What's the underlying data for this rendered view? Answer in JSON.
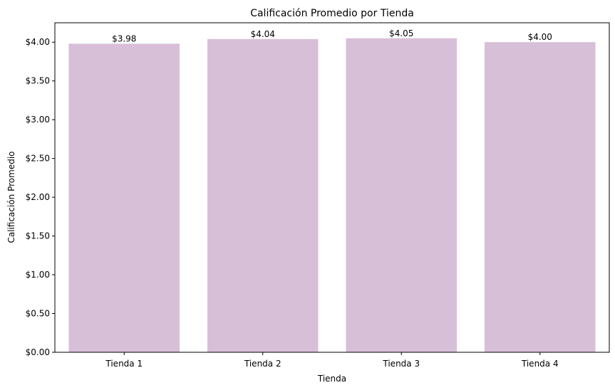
{
  "chart_data": {
    "type": "bar",
    "title": "Calificación Promedio por Tienda",
    "xlabel": "Tienda",
    "ylabel": "Calificación Promedio",
    "categories": [
      "Tienda 1",
      "Tienda 2",
      "Tienda 3",
      "Tienda 4"
    ],
    "values": [
      3.98,
      4.04,
      4.05,
      4.0
    ],
    "data_labels": [
      "$3.98",
      "$4.04",
      "$4.05",
      "$4.00"
    ],
    "ylim": [
      0,
      4.25
    ],
    "yticks": [
      {
        "value": 0.0,
        "label": "$0.00"
      },
      {
        "value": 0.5,
        "label": "$0.50"
      },
      {
        "value": 1.0,
        "label": "$1.00"
      },
      {
        "value": 1.5,
        "label": "$1.50"
      },
      {
        "value": 2.0,
        "label": "$2.00"
      },
      {
        "value": 2.5,
        "label": "$2.50"
      },
      {
        "value": 3.0,
        "label": "$3.00"
      },
      {
        "value": 3.5,
        "label": "$3.50"
      },
      {
        "value": 4.0,
        "label": "$4.00"
      }
    ],
    "grid": false,
    "bar_color": "#d8bfd8"
  }
}
